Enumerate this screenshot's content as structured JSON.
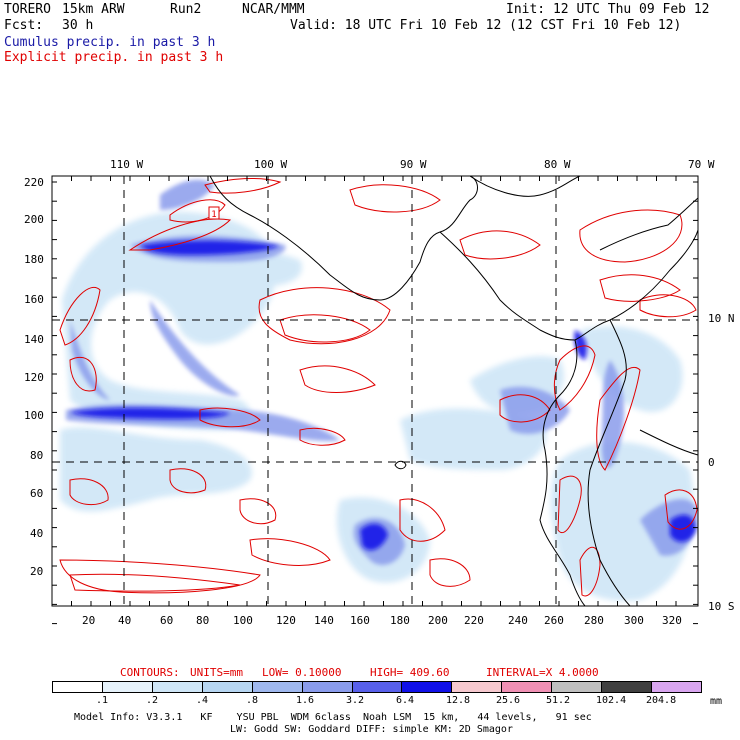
{
  "header": {
    "model": "TORERO",
    "resolution": "15km ARW",
    "run": "Run2",
    "org": "NCAR/MMM",
    "init": "Init: 12 UTC Thu 09 Feb 12",
    "fcst_label": "Fcst:",
    "fcst_value": "30 h",
    "valid": "Valid: 18 UTC Fri 10 Feb 12 (12 CST Fri 10 Feb 12)",
    "field1": "Cumulus precip. in past 3 h",
    "field2": "Explicit precip. in past 3 h"
  },
  "axes": {
    "top_lon": [
      "110 W",
      "100 W",
      "90 W",
      "80 W",
      "70 W"
    ],
    "right_lat": [
      "10 N",
      "0",
      "10 S"
    ],
    "left_ticks": [
      "220",
      "200",
      "180",
      "160",
      "140",
      "120",
      "100",
      "80",
      "60",
      "40",
      "20"
    ],
    "bottom_ticks": [
      "20",
      "40",
      "60",
      "80",
      "100",
      "120",
      "140",
      "160",
      "180",
      "200",
      "220",
      "240",
      "260",
      "280",
      "300",
      "320"
    ]
  },
  "contour_info": {
    "contours": "CONTOURS:",
    "units": "UNITS=mm",
    "low": "LOW= 0.10000",
    "high": "HIGH= 409.60",
    "interval": "INTERVAL=X 4.0000"
  },
  "colorbar": {
    "labels": [
      ".1",
      ".2",
      ".4",
      ".8",
      "1.6",
      "3.2",
      "6.4",
      "12.8",
      "25.6",
      "51.2",
      "102.4",
      "204.8"
    ],
    "unit": "mm",
    "colors": [
      "#ffffff",
      "#e6f2fb",
      "#cfe6f7",
      "#b7d6f2",
      "#9fb8ee",
      "#8a9cec",
      "#5860ea",
      "#1010e8",
      "#f6c9cf",
      "#f090b4",
      "#bfbfbf",
      "#404040",
      "#d9a6f0"
    ]
  },
  "footer": {
    "line1": "Model Info: V3.3.1   KF    YSU PBL  WDM 6class  Noah LSM  15 km,   44 levels,   91 sec",
    "line2": "LW: Godd SW: Goddard DIFF: simple KM: 2D Smagor"
  },
  "colors": {
    "cumulus": "#1a1aa6",
    "explicit": "#e00000",
    "coast": "#000000"
  }
}
